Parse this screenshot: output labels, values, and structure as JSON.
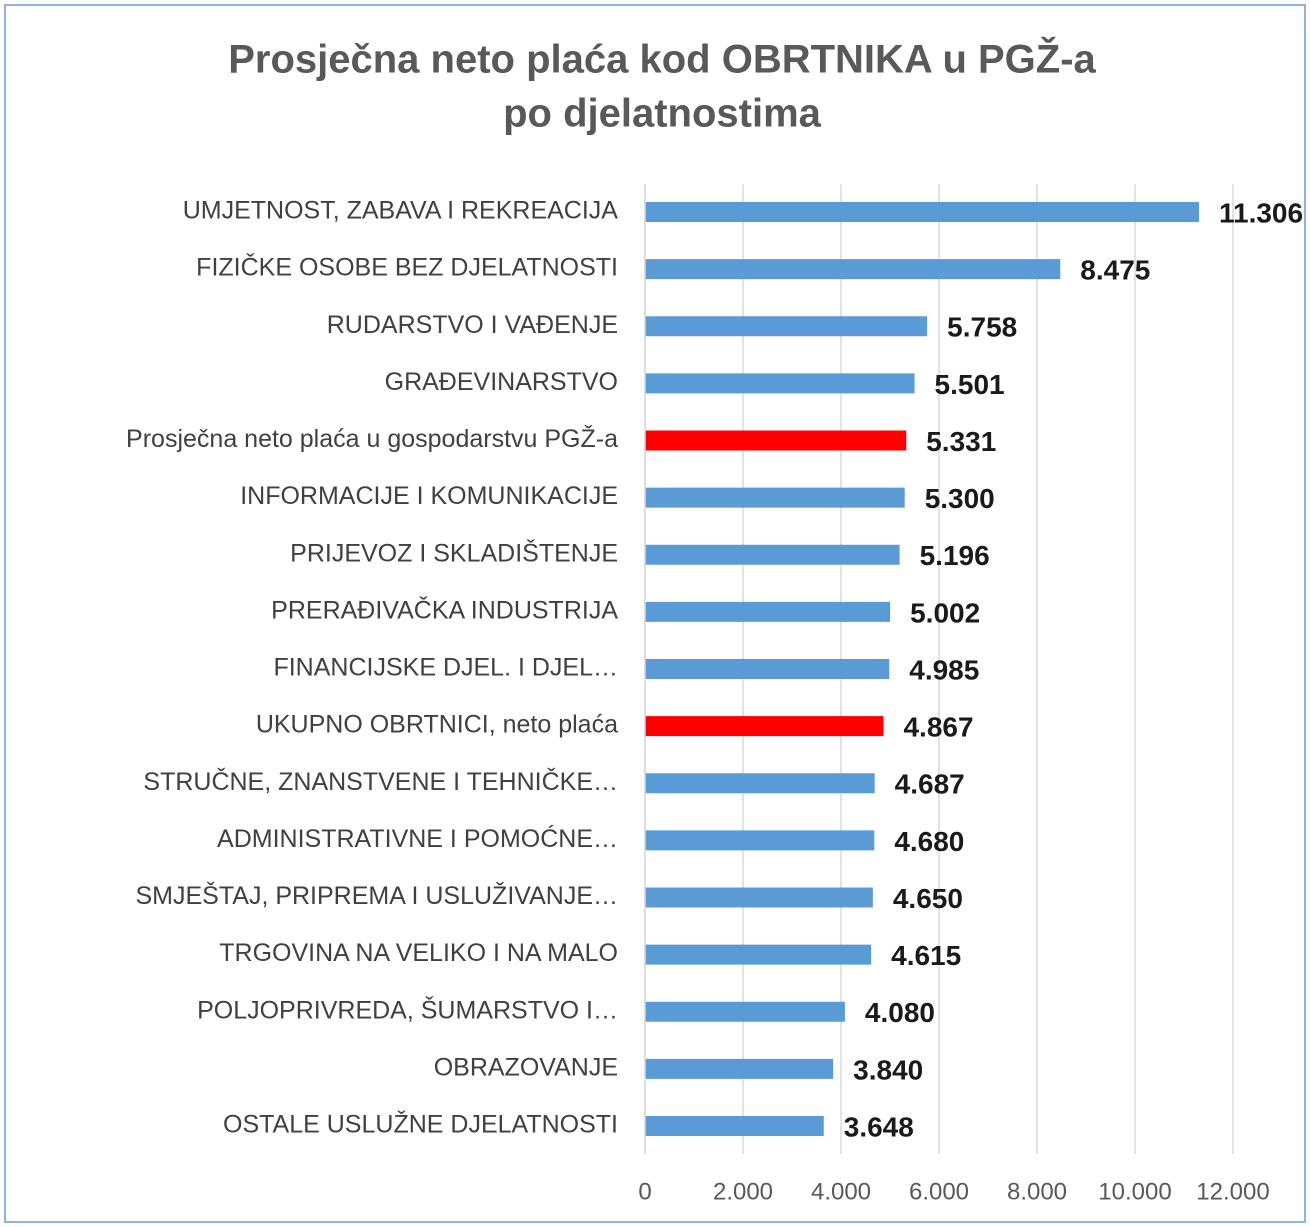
{
  "chart_data": {
    "type": "barh",
    "title": [
      "Prosječna neto plaća kod OBRTNIKA u PGŽ-a",
      "po djelatnostima"
    ],
    "categories": [
      "UMJETNOST, ZABAVA I REKREACIJA",
      "FIZIČKE OSOBE BEZ DJELATNOSTI",
      "RUDARSTVO I VAĐENJE",
      "GRAĐEVINARSTVO",
      "Prosječna neto plaća u gospodarstvu PGŽ-a",
      "INFORMACIJE I KOMUNIKACIJE",
      "PRIJEVOZ I SKLADIŠTENJE",
      "PRERAĐIVAČKA INDUSTRIJA",
      "FINANCIJSKE DJEL. I DJEL…",
      "UKUPNO OBRTNICI, neto plaća",
      "STRUČNE, ZNANSTVENE I TEHNIČKE…",
      "ADMINISTRATIVNE I POMOĆNE…",
      "SMJEŠTAJ, PRIPREMA I USLUŽIVANJE…",
      "TRGOVINA NA VELIKO I NA MALO",
      "POLJOPRIVREDA, ŠUMARSTVO I…",
      "OBRAZOVANJE",
      "OSTALE USLUŽNE DJELATNOSTI"
    ],
    "values": [
      11306,
      8475,
      5758,
      5501,
      5331,
      5300,
      5196,
      5002,
      4985,
      4867,
      4687,
      4680,
      4650,
      4615,
      4080,
      3840,
      3648
    ],
    "value_labels": [
      "11.306",
      "8.475",
      "5.758",
      "5.501",
      "5.331",
      "5.300",
      "5.196",
      "5.002",
      "4.985",
      "4.867",
      "4.687",
      "4.680",
      "4.650",
      "4.615",
      "4.080",
      "3.840",
      "3.648"
    ],
    "colors": [
      "#5b9bd5",
      "#5b9bd5",
      "#5b9bd5",
      "#5b9bd5",
      "#ff0000",
      "#5b9bd5",
      "#5b9bd5",
      "#5b9bd5",
      "#5b9bd5",
      "#ff0000",
      "#5b9bd5",
      "#5b9bd5",
      "#5b9bd5",
      "#5b9bd5",
      "#5b9bd5",
      "#5b9bd5",
      "#5b9bd5"
    ],
    "xlim": [
      0,
      12000
    ],
    "xticks": [
      0,
      {
        "value": 2000,
        "label": "2.000"
      },
      {
        "value": 4000,
        "label": "4.000"
      },
      {
        "value": 6000,
        "label": "6.000"
      },
      {
        "value": 8000,
        "label": "8.000"
      },
      {
        "value": 10000,
        "label": "10.000"
      },
      {
        "value": 12000,
        "label": "12.000"
      }
    ],
    "grid": true
  }
}
